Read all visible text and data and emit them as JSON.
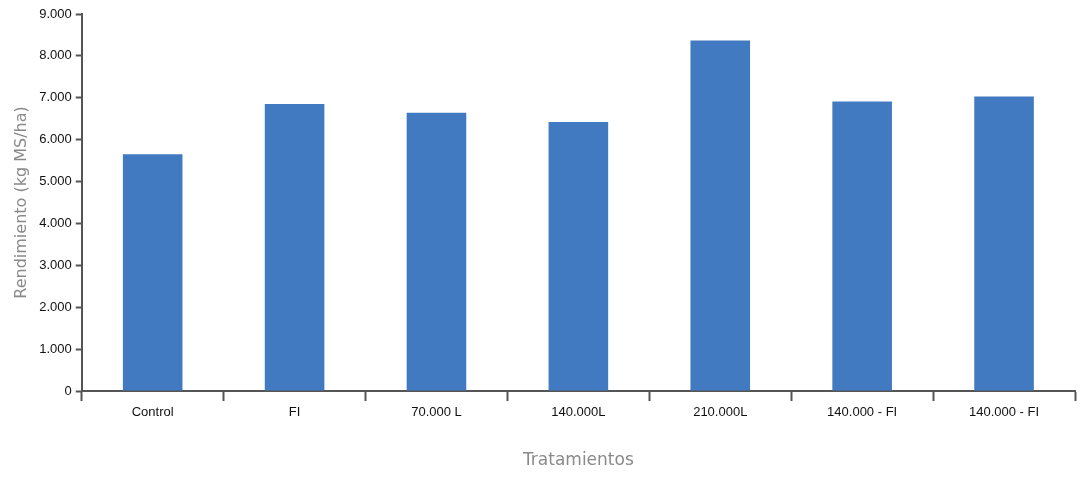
{
  "chart_data": {
    "type": "bar",
    "xlabel": "Tratamientos",
    "ylabel": "Rendimiento (kg MS/ha)",
    "categories": [
      "Control",
      "FI",
      "70.000 L",
      "140.000L",
      "210.000L",
      "140.000 - FI",
      "140.000 - FI"
    ],
    "values": [
      5650,
      6850,
      6640,
      6420,
      8370,
      6910,
      7030
    ],
    "color": "#417ac0",
    "ylim": [
      0,
      9000
    ],
    "yticks": [
      {
        "value": 0,
        "label": "0"
      },
      {
        "value": 1000,
        "label": "1.000"
      },
      {
        "value": 2000,
        "label": "2.000"
      },
      {
        "value": 3000,
        "label": "3.000"
      },
      {
        "value": 4000,
        "label": "4.000"
      },
      {
        "value": 5000,
        "label": "5.000"
      },
      {
        "value": 6000,
        "label": "6.000"
      },
      {
        "value": 7000,
        "label": "7.000"
      },
      {
        "value": 8000,
        "label": "8.000"
      },
      {
        "value": 9000,
        "label": "9.000"
      }
    ],
    "grid": false,
    "legend": false
  }
}
